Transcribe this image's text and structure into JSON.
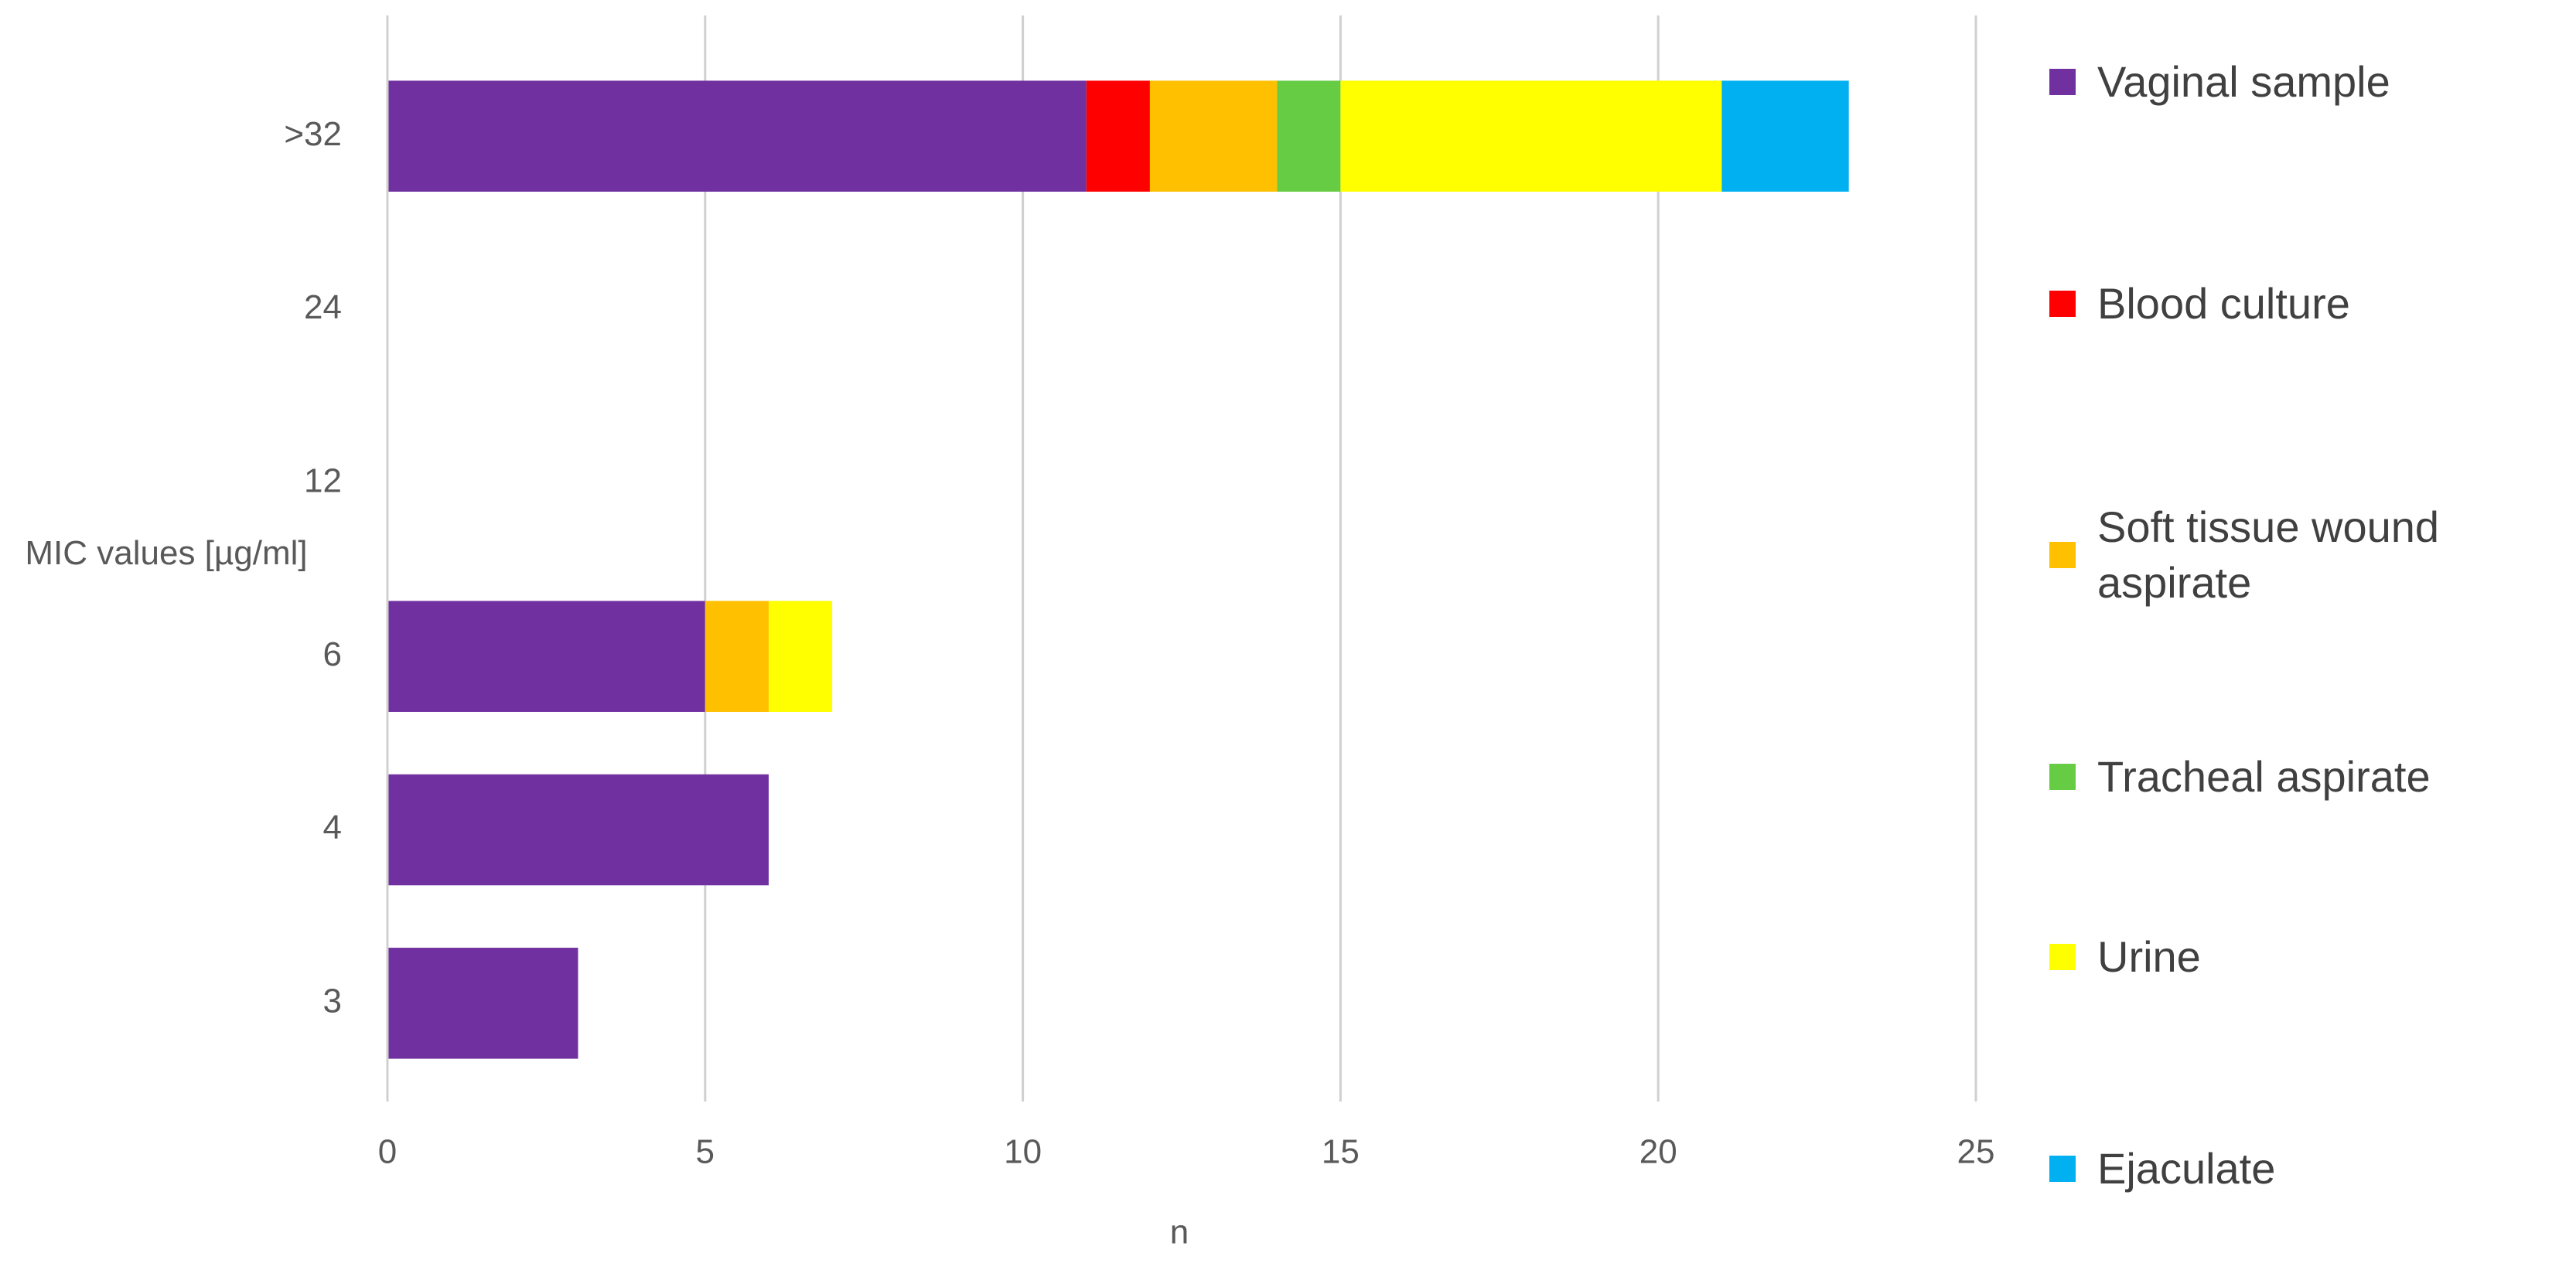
{
  "chart_data": {
    "type": "stacked-barh",
    "categories": [
      ">32",
      "24",
      "12",
      "6",
      "4",
      "3"
    ],
    "series": [
      {
        "name": "Vaginal sample",
        "color": "#7030a0",
        "values": [
          11,
          0,
          0,
          5,
          6,
          3
        ]
      },
      {
        "name": "Blood culture",
        "color": "#ff0000",
        "values": [
          1,
          0,
          0,
          0,
          0,
          0
        ]
      },
      {
        "name": "Soft tissue wound aspirate",
        "color": "#ffc000",
        "values": [
          2,
          0,
          0,
          1,
          0,
          0
        ]
      },
      {
        "name": "Tracheal aspirate",
        "color": "#66cc44",
        "values": [
          1,
          0,
          0,
          0,
          0,
          0
        ]
      },
      {
        "name": "Urine",
        "color": "#ffff00",
        "values": [
          6,
          0,
          0,
          1,
          0,
          0
        ]
      },
      {
        "name": "Ejaculate",
        "color": "#00b0f0",
        "values": [
          2,
          0,
          0,
          0,
          0,
          0
        ]
      }
    ],
    "y_label": "MIC values [µg/ml]",
    "x_label": "n",
    "xlim": [
      0,
      25
    ],
    "xticks": [
      0,
      5,
      10,
      15,
      20,
      25
    ],
    "grid": true,
    "legend": "right"
  }
}
